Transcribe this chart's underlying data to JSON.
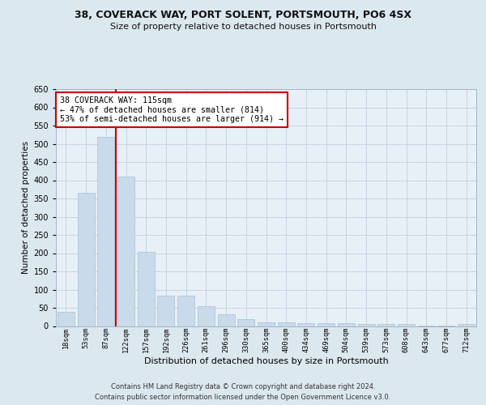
{
  "title1": "38, COVERACK WAY, PORT SOLENT, PORTSMOUTH, PO6 4SX",
  "title2": "Size of property relative to detached houses in Portsmouth",
  "xlabel": "Distribution of detached houses by size in Portsmouth",
  "ylabel": "Number of detached properties",
  "categories": [
    "18sqm",
    "53sqm",
    "87sqm",
    "122sqm",
    "157sqm",
    "192sqm",
    "226sqm",
    "261sqm",
    "296sqm",
    "330sqm",
    "365sqm",
    "400sqm",
    "434sqm",
    "469sqm",
    "504sqm",
    "539sqm",
    "573sqm",
    "608sqm",
    "643sqm",
    "677sqm",
    "712sqm"
  ],
  "values": [
    38,
    365,
    520,
    410,
    203,
    84,
    84,
    55,
    33,
    20,
    10,
    10,
    8,
    8,
    8,
    5,
    5,
    5,
    2,
    2,
    5
  ],
  "bar_color": "#c9daea",
  "bar_edge_color": "#a8bfd4",
  "red_line_index": 2,
  "annotation_title": "38 COVERACK WAY: 115sqm",
  "annotation_line1": "← 47% of detached houses are smaller (814)",
  "annotation_line2": "53% of semi-detached houses are larger (914) →",
  "annotation_box_color": "#ffffff",
  "annotation_box_edge": "#cc0000",
  "red_line_color": "#cc0000",
  "grid_color": "#c0cfe0",
  "bg_color": "#dce8f0",
  "plot_bg_color": "#e8f0f7",
  "ylim": [
    0,
    650
  ],
  "yticks": [
    0,
    50,
    100,
    150,
    200,
    250,
    300,
    350,
    400,
    450,
    500,
    550,
    600,
    650
  ],
  "footer1": "Contains HM Land Registry data © Crown copyright and database right 2024.",
  "footer2": "Contains public sector information licensed under the Open Government Licence v3.0."
}
